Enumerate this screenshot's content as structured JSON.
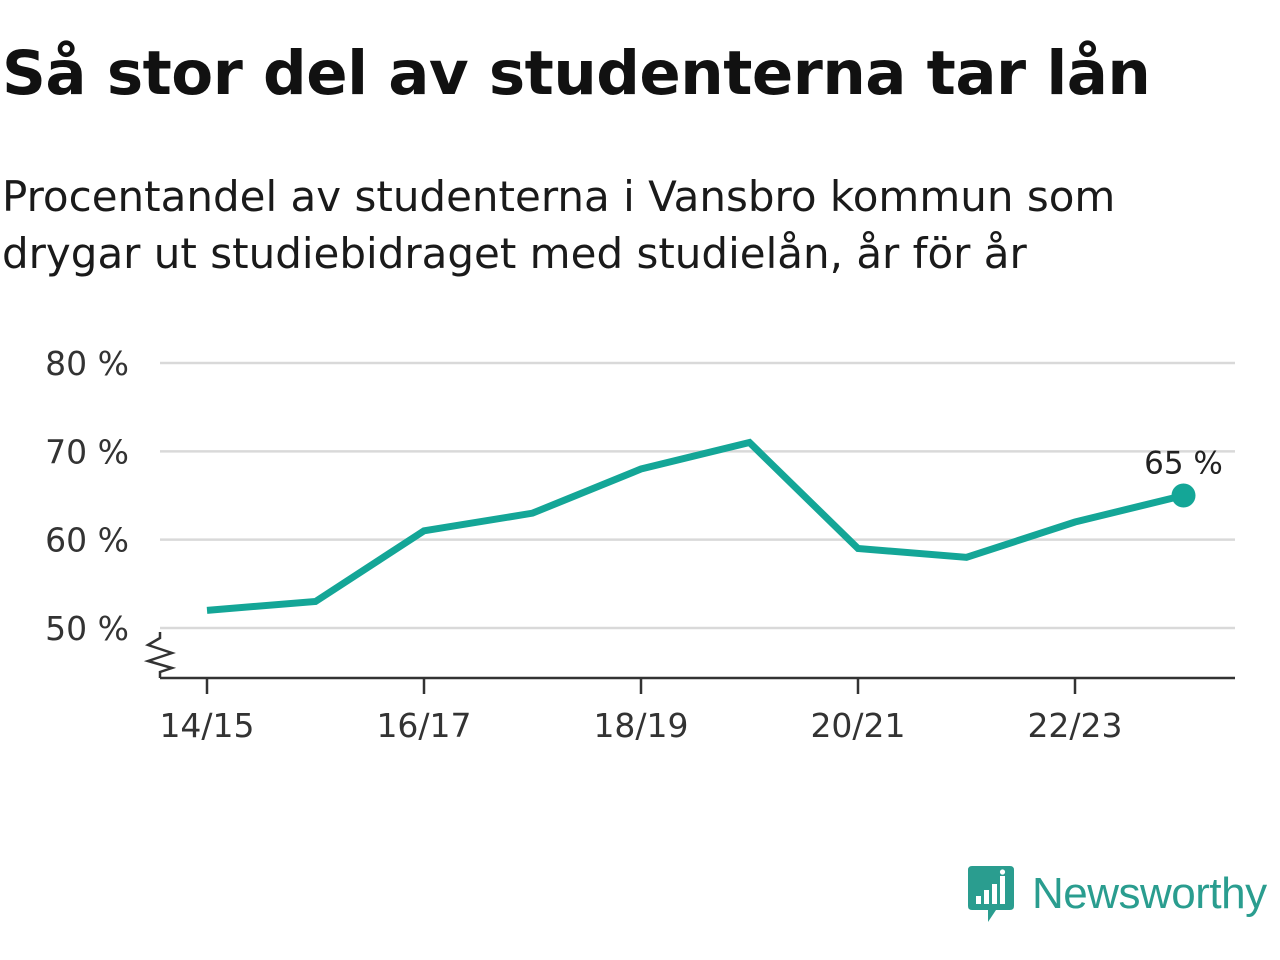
{
  "chart_data": {
    "type": "line",
    "title": "Så stor del av studenterna tar lån",
    "subtitle": "Procentandel av studenterna i Vansbro kommun som drygar ut studiebidraget med studielån, år för år",
    "x": [
      "14/15",
      "15/16",
      "16/17",
      "17/18",
      "18/19",
      "19/20",
      "20/21",
      "21/22",
      "22/23",
      "23/24"
    ],
    "x_tick_labels": [
      "14/15",
      "16/17",
      "18/19",
      "20/21",
      "22/23"
    ],
    "series": [
      {
        "values": [
          52,
          53,
          61,
          63,
          68,
          71,
          59,
          58,
          62,
          65
        ]
      }
    ],
    "ylim": [
      45,
      80
    ],
    "y_ticks": [
      50,
      60,
      70,
      80
    ],
    "y_tick_labels": [
      "50 %",
      "60 %",
      "70 %",
      "80 %"
    ],
    "last_value_label": "65 %",
    "y_axis_break": true,
    "grid": true,
    "line_color": "#14a697"
  },
  "branding": {
    "name": "Newsworthy",
    "icon": "newsworthy-logo-icon",
    "color": "#2a9d8f"
  }
}
